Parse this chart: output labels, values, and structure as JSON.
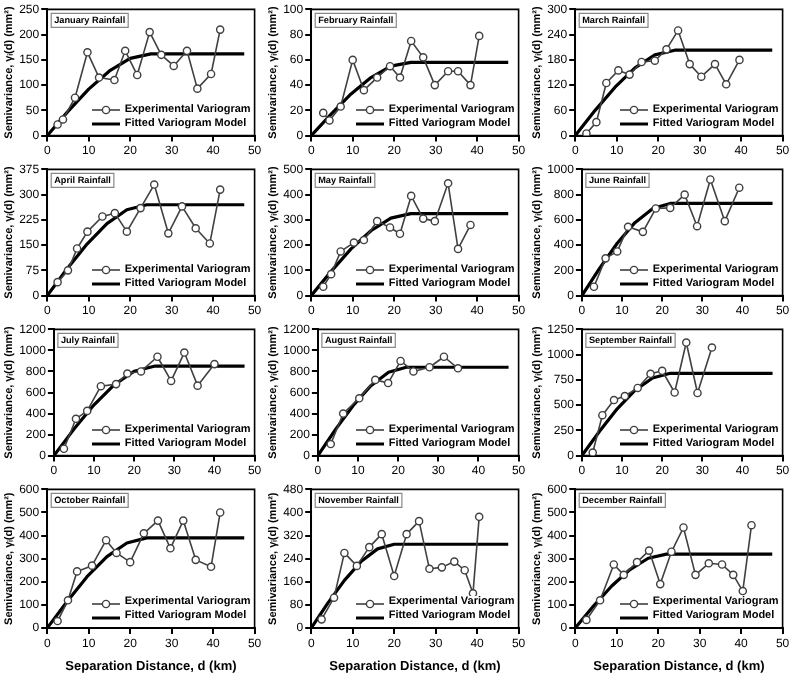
{
  "chart_data": [
    {
      "type": "line",
      "title": "January Rainfall",
      "ylabel": "Semivariance, γᵢ(d) (mm²)",
      "xlim": [
        0,
        50
      ],
      "xticks": [
        0,
        10,
        20,
        30,
        40,
        50
      ],
      "ylim": [
        0,
        250
      ],
      "yticks": [
        0,
        50,
        100,
        150,
        200,
        250
      ],
      "legend": "bottom right",
      "series": [
        {
          "name": "Experimental Variogram",
          "color": "#404040",
          "marker": "circle",
          "x": [
            2.5,
            3.8,
            6.7,
            9.7,
            12.5,
            16.2,
            18.8,
            21.7,
            24.7,
            27.5,
            30.5,
            33.7,
            36.2,
            39.5,
            41.7
          ],
          "values": [
            22,
            32,
            75,
            165,
            115,
            110,
            168,
            120,
            205,
            160,
            138,
            168,
            93,
            122,
            210
          ]
        },
        {
          "name": "Fitted Variogram Model",
          "color": "#000000",
          "marker": "none",
          "x": [
            0,
            5,
            10,
            15,
            20,
            25,
            47.5
          ],
          "values": [
            0,
            48,
            92,
            128,
            153,
            162,
            162
          ]
        }
      ]
    },
    {
      "type": "line",
      "title": "February Rainfall",
      "ylabel": "Semivariance, γᵢ(d) (mm²)",
      "xlim": [
        0,
        50
      ],
      "xticks": [
        0,
        10,
        20,
        30,
        40,
        50
      ],
      "ylim": [
        0,
        100
      ],
      "yticks": [
        0,
        20,
        40,
        60,
        80,
        100
      ],
      "legend": "bottom right",
      "series": [
        {
          "name": "Experimental Variogram",
          "color": "#404040",
          "marker": "circle",
          "x": [
            2.9,
            4.4,
            7.1,
            10,
            12.7,
            15.9,
            19,
            21.4,
            24.1,
            27,
            29.8,
            33,
            35.4,
            38.4,
            40.5
          ],
          "values": [
            18,
            12,
            23,
            60,
            36,
            46,
            55,
            46,
            75,
            62,
            40,
            51,
            51,
            40,
            79
          ]
        },
        {
          "name": "Fitted Variogram Model",
          "color": "#000000",
          "marker": "none",
          "x": [
            0,
            4.8,
            9.6,
            14.4,
            19.2,
            24,
            47.5
          ],
          "values": [
            0,
            17,
            33,
            46,
            55,
            58,
            58
          ]
        }
      ]
    },
    {
      "type": "line",
      "title": "March Rainfall",
      "ylabel": "Semivariance, γᵢ(d) (mm²)",
      "xlim": [
        0,
        50
      ],
      "xticks": [
        0,
        10,
        20,
        30,
        40,
        50
      ],
      "ylim": [
        0,
        300
      ],
      "yticks": [
        0,
        60,
        120,
        180,
        240,
        300
      ],
      "legend": "bottom right",
      "series": [
        {
          "name": "Experimental Variogram",
          "color": "#404040",
          "marker": "circle",
          "x": [
            2.7,
            5.1,
            7.5,
            10.4,
            13.1,
            16,
            19.2,
            22,
            24.8,
            27.6,
            30.4,
            33.7,
            36.4,
            39.6
          ],
          "values": [
            5,
            32,
            125,
            155,
            145,
            175,
            178,
            205,
            250,
            170,
            140,
            170,
            122,
            180
          ]
        },
        {
          "name": "Fitted Variogram Model",
          "color": "#000000",
          "marker": "none",
          "x": [
            0,
            4.8,
            9.6,
            14.4,
            19.2,
            24,
            47.5
          ],
          "values": [
            0,
            60,
            115,
            161,
            192,
            203,
            203
          ]
        }
      ]
    },
    {
      "type": "line",
      "title": "April Rainfall",
      "ylabel": "Semivariance, γᵢ(d) (mm²)",
      "xlim": [
        0,
        50
      ],
      "xticks": [
        0,
        10,
        20,
        30,
        40,
        50
      ],
      "ylim": [
        0,
        375
      ],
      "yticks": [
        0,
        75,
        150,
        225,
        300,
        375
      ],
      "legend": "bottom right",
      "series": [
        {
          "name": "Experimental Variogram",
          "color": "#404040",
          "marker": "circle",
          "x": [
            2.5,
            5,
            7.2,
            9.7,
            13.3,
            16.3,
            19.2,
            22.5,
            25.8,
            29.2,
            32.5,
            35.8,
            39.2,
            41.7
          ],
          "values": [
            40,
            75,
            140,
            190,
            235,
            245,
            190,
            260,
            330,
            185,
            265,
            200,
            155,
            315
          ]
        },
        {
          "name": "Fitted Variogram Model",
          "color": "#000000",
          "marker": "none",
          "x": [
            0,
            4.8,
            9.6,
            14.4,
            19.2,
            24,
            47.5
          ],
          "values": [
            0,
            80,
            153,
            214,
            255,
            270,
            270
          ]
        }
      ]
    },
    {
      "type": "line",
      "title": "May Rainfall",
      "ylabel": "Semivariance, γᵢ(d) (mm²)",
      "xlim": [
        0,
        50
      ],
      "xticks": [
        0,
        10,
        20,
        30,
        40,
        50
      ],
      "ylim": [
        0,
        500
      ],
      "yticks": [
        0,
        100,
        200,
        300,
        400,
        500
      ],
      "legend": "bottom right",
      "series": [
        {
          "name": "Experimental Variogram",
          "color": "#404040",
          "marker": "circle",
          "x": [
            2.9,
            4.8,
            7.1,
            10.3,
            12.7,
            15.9,
            19,
            21.4,
            24.1,
            27,
            29.8,
            33,
            35.4,
            38.4
          ],
          "values": [
            35,
            85,
            175,
            210,
            220,
            295,
            270,
            245,
            395,
            305,
            295,
            445,
            185,
            280
          ]
        },
        {
          "name": "Fitted Variogram Model",
          "color": "#000000",
          "marker": "none",
          "x": [
            0,
            4.8,
            9.6,
            14.4,
            19.2,
            24,
            47.5
          ],
          "values": [
            0,
            96,
            185,
            257,
            307,
            325,
            325
          ]
        }
      ]
    },
    {
      "type": "line",
      "title": "June Rainfall",
      "ylabel": "Semivariance, γᵢ(d) (mm²)",
      "xlim": [
        0,
        50
      ],
      "xticks": [
        0,
        10,
        20,
        30,
        40,
        50
      ],
      "ylim": [
        0,
        1000
      ],
      "yticks": [
        0,
        200,
        400,
        600,
        800,
        1000
      ],
      "legend": "bottom right",
      "series": [
        {
          "name": "Experimental Variogram",
          "color": "#404040",
          "marker": "circle",
          "x": [
            3,
            5.9,
            8.8,
            11.5,
            15.2,
            18.4,
            22,
            25.6,
            28.7,
            32,
            35.6,
            39.2
          ],
          "values": [
            70,
            295,
            350,
            545,
            505,
            690,
            695,
            800,
            550,
            920,
            590,
            855
          ]
        },
        {
          "name": "Fitted Variogram Model",
          "color": "#000000",
          "marker": "none",
          "x": [
            0,
            4.4,
            8.8,
            13.2,
            17.6,
            22,
            47.5
          ],
          "values": [
            0,
            216,
            415,
            578,
            689,
            730,
            730
          ]
        }
      ]
    },
    {
      "type": "line",
      "title": "July Rainfall",
      "ylabel": "Semivariance, γᵢ(d) (mm²)",
      "xlim": [
        0,
        50
      ],
      "xticks": [
        0,
        10,
        20,
        30,
        40,
        50
      ],
      "ylim": [
        0,
        1200
      ],
      "yticks": [
        0,
        200,
        400,
        600,
        800,
        1000,
        1200
      ],
      "legend": "bottom right",
      "series": [
        {
          "name": "Experimental Variogram",
          "color": "#404040",
          "marker": "circle",
          "x": [
            2.5,
            5.5,
            8.3,
            11.7,
            15.5,
            18.3,
            21.7,
            25.8,
            29.2,
            32.5,
            35.8,
            40
          ],
          "values": [
            65,
            350,
            425,
            660,
            680,
            780,
            800,
            940,
            710,
            980,
            665,
            870
          ]
        },
        {
          "name": "Fitted Variogram Model",
          "color": "#000000",
          "marker": "none",
          "x": [
            0,
            5,
            10,
            15,
            20,
            25,
            47.5
          ],
          "values": [
            0,
            252,
            483,
            673,
            802,
            850,
            850
          ]
        }
      ]
    },
    {
      "type": "line",
      "title": "August Rainfall",
      "ylabel": "Semivariance, γᵢ(d) (mm²)",
      "xlim": [
        0,
        50
      ],
      "xticks": [
        0,
        10,
        20,
        30,
        40,
        50
      ],
      "ylim": [
        0,
        1200
      ],
      "yticks": [
        0,
        200,
        400,
        600,
        800,
        1000,
        1200
      ],
      "legend": "bottom right",
      "series": [
        {
          "name": "Experimental Variogram",
          "color": "#404040",
          "marker": "circle",
          "x": [
            3.2,
            6.3,
            10.3,
            14.3,
            17.5,
            20.6,
            23.8,
            27.8,
            31.4,
            34.9
          ],
          "values": [
            110,
            400,
            545,
            720,
            690,
            900,
            800,
            840,
            940,
            830
          ]
        },
        {
          "name": "Fitted Variogram Model",
          "color": "#000000",
          "marker": "none",
          "x": [
            0,
            4.4,
            8.8,
            13.2,
            17.6,
            22,
            47.5
          ],
          "values": [
            0,
            249,
            477,
            665,
            793,
            840,
            840
          ]
        }
      ]
    },
    {
      "type": "line",
      "title": "September Rainfall",
      "ylabel": "Semivariance, γᵢ(d) (mm²)",
      "xlim": [
        0,
        50
      ],
      "xticks": [
        0,
        10,
        20,
        30,
        40,
        50
      ],
      "ylim": [
        0,
        1250
      ],
      "yticks": [
        0,
        250,
        500,
        750,
        1000,
        1250
      ],
      "legend": "bottom right",
      "series": [
        {
          "name": "Experimental Variogram",
          "color": "#404040",
          "marker": "circle",
          "x": [
            2.7,
            5.1,
            8,
            10.7,
            13.9,
            17.1,
            20,
            23.1,
            26,
            28.8,
            32.4
          ],
          "values": [
            30,
            400,
            550,
            590,
            670,
            810,
            840,
            625,
            1120,
            620,
            1070
          ]
        },
        {
          "name": "Fitted Variogram Model",
          "color": "#000000",
          "marker": "none",
          "x": [
            0,
            4.4,
            8.8,
            13.2,
            17.6,
            22,
            47.5
          ],
          "values": [
            0,
            241,
            463,
            645,
            769,
            815,
            815
          ]
        }
      ]
    },
    {
      "type": "line",
      "title": "October Rainfall",
      "xlabel": "Separation Distance, d (km)",
      "ylabel": "Semivariance, γᵢ(d) (mm²)",
      "xlim": [
        0,
        50
      ],
      "xticks": [
        0,
        10,
        20,
        30,
        40,
        50
      ],
      "ylim": [
        0,
        600
      ],
      "yticks": [
        0,
        100,
        200,
        300,
        400,
        500,
        600
      ],
      "legend": "bottom right",
      "series": [
        {
          "name": "Experimental Variogram",
          "color": "#404040",
          "marker": "circle",
          "x": [
            2.5,
            5,
            7.2,
            10.8,
            14.2,
            16.7,
            20,
            23.3,
            26.7,
            29.7,
            32.8,
            35.8,
            39.5,
            41.7
          ],
          "values": [
            30,
            120,
            245,
            270,
            380,
            325,
            285,
            410,
            465,
            345,
            465,
            295,
            265,
            500
          ]
        },
        {
          "name": "Fitted Variogram Model",
          "color": "#000000",
          "marker": "none",
          "x": [
            0,
            4.8,
            9.6,
            14.4,
            19.2,
            24,
            47.5
          ],
          "values": [
            0,
            115,
            222,
            309,
            368,
            390,
            390
          ]
        }
      ]
    },
    {
      "type": "line",
      "title": "November Rainfall",
      "xlabel": "Separation Distance, d (km)",
      "ylabel": "Semivariance, γᵢ(d) (mm²)",
      "xlim": [
        0,
        50
      ],
      "xticks": [
        0,
        10,
        20,
        30,
        40,
        50
      ],
      "ylim": [
        0,
        480
      ],
      "yticks": [
        0,
        80,
        160,
        240,
        320,
        400,
        480
      ],
      "legend": "bottom right",
      "series": [
        {
          "name": "Experimental Variogram",
          "color": "#404040",
          "marker": "circle",
          "x": [
            2.5,
            5.5,
            8,
            11,
            14,
            17,
            20,
            23,
            26,
            28.5,
            31.5,
            34.5,
            37,
            39,
            40.5
          ],
          "values": [
            30,
            105,
            260,
            215,
            280,
            325,
            180,
            325,
            370,
            205,
            210,
            230,
            200,
            120,
            385
          ]
        },
        {
          "name": "Fitted Variogram Model",
          "color": "#000000",
          "marker": "none",
          "x": [
            0,
            4,
            8,
            12,
            16,
            20,
            47.5
          ],
          "values": [
            0,
            86,
            165,
            230,
            274,
            290,
            290
          ]
        }
      ]
    },
    {
      "type": "line",
      "title": "December Rainfall",
      "xlabel": "Separation Distance, d (km)",
      "ylabel": "Semivariance, γᵢ(d) (mm²)",
      "xlim": [
        0,
        50
      ],
      "xticks": [
        0,
        10,
        20,
        30,
        40,
        50
      ],
      "ylim": [
        0,
        600
      ],
      "yticks": [
        0,
        100,
        200,
        300,
        400,
        500,
        600
      ],
      "legend": "bottom right",
      "series": [
        {
          "name": "Experimental Variogram",
          "color": "#404040",
          "marker": "circle",
          "x": [
            2.7,
            6,
            9.3,
            11.7,
            14.9,
            17.8,
            20.5,
            23.2,
            26.1,
            29,
            32.2,
            35.4,
            38.1,
            40.4,
            42.5
          ],
          "values": [
            35,
            120,
            275,
            230,
            285,
            335,
            190,
            330,
            435,
            230,
            280,
            275,
            230,
            160,
            445
          ]
        },
        {
          "name": "Fitted Variogram Model",
          "color": "#000000",
          "marker": "none",
          "x": [
            0,
            4.4,
            8.8,
            13.2,
            17.6,
            22,
            47.5
          ],
          "values": [
            0,
            95,
            182,
            253,
            302,
            320,
            320
          ]
        }
      ]
    }
  ]
}
